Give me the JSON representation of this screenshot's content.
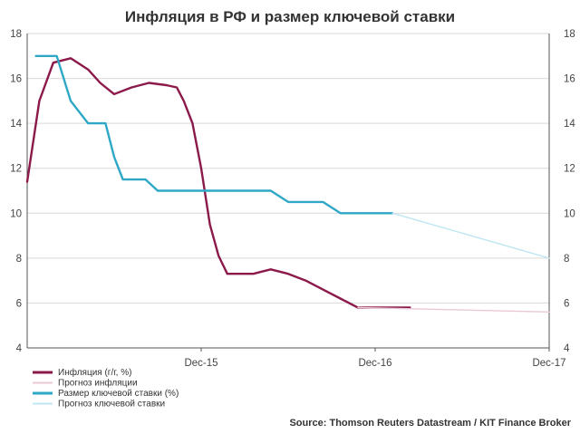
{
  "chart_data": {
    "type": "line",
    "title": "Инфляция в РФ и размер ключевой ставки",
    "source": "Source: Thomson Reuters Datastream / KIT Finance Broker",
    "x_ticks": [
      "Dec-15",
      "Dec-16",
      "Dec-17"
    ],
    "ylim": [
      4,
      18
    ],
    "y_ticks": [
      "4",
      "6",
      "8",
      "10",
      "12",
      "14",
      "16",
      "18"
    ],
    "grid": true,
    "legend_position": "bottom-left",
    "series": [
      {
        "name": "Инфляция (г/г, %)",
        "color": "#8b1a4a",
        "x": [
          0,
          0.7,
          1.5,
          2.5,
          3.5,
          4.2,
          5,
          6,
          7,
          8,
          8.6,
          9,
          9.5,
          10,
          10.5,
          11,
          11.5,
          12,
          12.5,
          13,
          13.5,
          14,
          15,
          16,
          17,
          18,
          19,
          20,
          21,
          22
        ],
        "values": [
          11.4,
          15.0,
          16.7,
          16.9,
          16.4,
          15.8,
          15.3,
          15.6,
          15.8,
          15.7,
          15.6,
          15.0,
          14.0,
          12.0,
          9.5,
          8.1,
          7.3,
          7.3,
          7.3,
          7.3,
          7.4,
          7.5,
          7.3,
          7.0,
          6.6,
          6.2,
          5.8,
          5.8,
          5.8,
          5.8
        ]
      },
      {
        "name": "Прогноз инфляции",
        "color": "#e9c9d4",
        "x": [
          19,
          30
        ],
        "values": [
          5.8,
          5.6
        ]
      },
      {
        "name": "Размер ключевой ставки (%)",
        "color": "#2ea8c6",
        "x": [
          0.5,
          1.7,
          2.5,
          3.5,
          4,
          4.5,
          5,
          5.5,
          6,
          6.8,
          7.5,
          8.5,
          9.5,
          10,
          14,
          15,
          16,
          17,
          18,
          19,
          20,
          21
        ],
        "values": [
          17.0,
          17.0,
          15.0,
          14.0,
          14.0,
          14.0,
          12.5,
          11.5,
          11.5,
          11.5,
          11.0,
          11.0,
          11.0,
          11.0,
          11.0,
          10.5,
          10.5,
          10.5,
          10.0,
          10.0,
          10.0,
          10.0
        ]
      },
      {
        "name": "Прогноз ключевой ставки",
        "color": "#bfe6f2",
        "x": [
          21,
          30
        ],
        "values": [
          10.0,
          8.0
        ]
      }
    ]
  }
}
